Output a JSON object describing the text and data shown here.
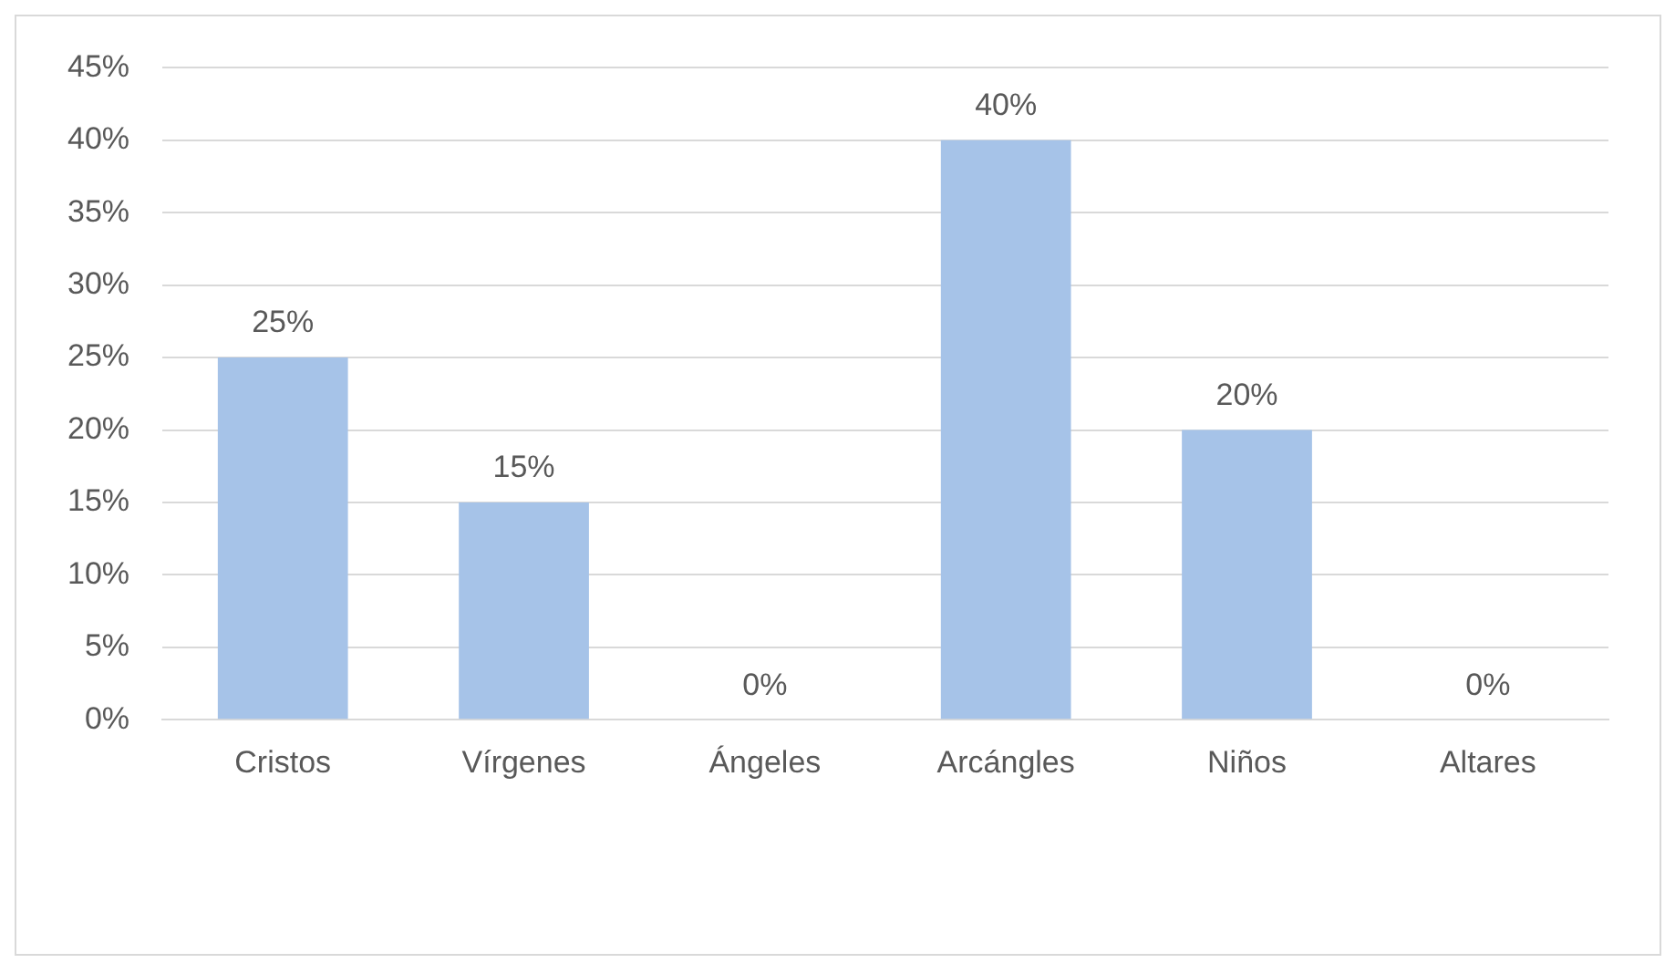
{
  "chart_data": {
    "type": "bar",
    "categories": [
      "Cristos",
      "Vírgenes",
      "Ángeles",
      "Arcángles",
      "Niños",
      "Altares"
    ],
    "values": [
      25,
      15,
      0,
      40,
      20,
      0
    ],
    "value_labels": [
      "25%",
      "15%",
      "0%",
      "40%",
      "20%",
      "0%"
    ],
    "color": "#a6c3e8",
    "ylim": [
      0,
      45
    ],
    "yticks": [
      {
        "value": 0,
        "label": "0%"
      },
      {
        "value": 5,
        "label": "5%"
      },
      {
        "value": 10,
        "label": "10%"
      },
      {
        "value": 15,
        "label": "15%"
      },
      {
        "value": 20,
        "label": "20%"
      },
      {
        "value": 25,
        "label": "25%"
      },
      {
        "value": 30,
        "label": "30%"
      },
      {
        "value": 35,
        "label": "35%"
      },
      {
        "value": 40,
        "label": "40%"
      },
      {
        "value": 45,
        "label": "45%"
      }
    ],
    "grid": "y",
    "legend": false
  }
}
